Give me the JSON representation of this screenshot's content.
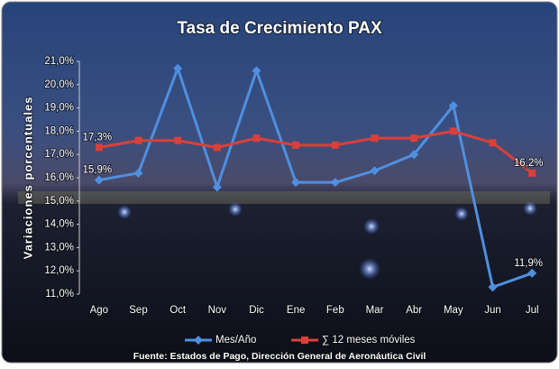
{
  "chart_data": {
    "type": "line",
    "title": "Tasa de Crecimiento PAX",
    "y_label": "Variaciones porcentuales",
    "source": "Fuente: Estados de Pago, Dirección General de Aeronáutica Civil",
    "categories": [
      "Ago",
      "Sep",
      "Oct",
      "Nov",
      "Dic",
      "Ene",
      "Feb",
      "Mar",
      "Abr",
      "May",
      "Jun",
      "Jul"
    ],
    "series": [
      {
        "name": "Mes/Año",
        "color": "#4f8fe0",
        "marker": "diamond",
        "values": [
          15.9,
          16.2,
          20.7,
          15.6,
          20.6,
          15.8,
          15.8,
          16.3,
          17.0,
          19.1,
          11.3,
          11.9
        ],
        "value_labels": [
          "15,9%",
          null,
          null,
          null,
          null,
          null,
          null,
          null,
          null,
          null,
          null,
          "11,9%"
        ]
      },
      {
        "name": "∑ 12 meses móviles",
        "color": "#d9403a",
        "marker": "square",
        "values": [
          17.3,
          17.6,
          17.6,
          17.3,
          17.7,
          17.4,
          17.4,
          17.7,
          17.7,
          18.0,
          17.5,
          16.2
        ],
        "value_labels": [
          "17,3%",
          null,
          null,
          null,
          null,
          null,
          null,
          null,
          null,
          null,
          null,
          "16,2%"
        ]
      }
    ],
    "ylim": [
      11.0,
      21.0
    ],
    "yticks": [
      {
        "value": 11.0,
        "label": "11,0%"
      },
      {
        "value": 12.0,
        "label": "12,0%"
      },
      {
        "value": 13.0,
        "label": "13,0%"
      },
      {
        "value": 14.0,
        "label": "14,0%"
      },
      {
        "value": 15.0,
        "label": "15,0%"
      },
      {
        "value": 16.0,
        "label": "16,0%"
      },
      {
        "value": 17.0,
        "label": "17,0%"
      },
      {
        "value": 18.0,
        "label": "18,0%"
      },
      {
        "value": 19.0,
        "label": "19,0%"
      },
      {
        "value": 20.0,
        "label": "20,0%"
      },
      {
        "value": 21.0,
        "label": "21,0%"
      }
    ],
    "legend": "bottom"
  }
}
